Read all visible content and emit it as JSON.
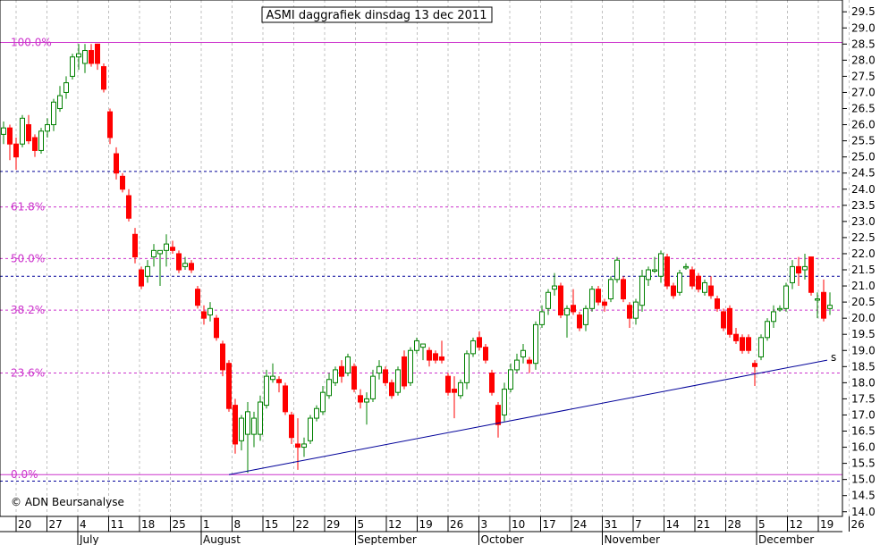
{
  "chart_data": {
    "type": "candlestick",
    "title": "ASMI daggrafiek dinsdag 13 dec 2011",
    "copyright": "© ADN Beursanalyse",
    "trendline_label": "s",
    "ylim": [
      14.0,
      29.5
    ],
    "y_ticks": [
      14.0,
      14.5,
      15.0,
      15.5,
      16.0,
      16.5,
      17.0,
      17.5,
      18.0,
      18.5,
      19.0,
      19.5,
      20.0,
      20.5,
      21.0,
      21.5,
      22.0,
      22.5,
      23.0,
      23.5,
      24.0,
      24.5,
      25.0,
      25.5,
      26.0,
      26.5,
      27.0,
      27.5,
      28.0,
      28.5,
      29.0,
      29.5
    ],
    "x_ticks": [
      "20",
      "27",
      "4",
      "11",
      "18",
      "25",
      "1",
      "8",
      "15",
      "22",
      "29",
      "5",
      "12",
      "19",
      "26",
      "3",
      "10",
      "17",
      "24",
      "31",
      "7",
      "14",
      "21",
      "28",
      "5",
      "12",
      "19",
      "26"
    ],
    "months": [
      {
        "label": "July",
        "week_index": 2
      },
      {
        "label": "August",
        "week_index": 6
      },
      {
        "label": "September",
        "week_index": 11
      },
      {
        "label": "October",
        "week_index": 15
      },
      {
        "label": "November",
        "week_index": 19
      },
      {
        "label": "December",
        "week_index": 24
      }
    ],
    "colors": {
      "up": "#008000",
      "down": "#ff0000",
      "fib": "#cc33cc",
      "support": "#000099",
      "trend": "#000099",
      "grid": "#c0c0c0"
    },
    "fib_levels": [
      {
        "label": "100.0%",
        "value": 28.55
      },
      {
        "label": "61.8%",
        "value": 23.45
      },
      {
        "label": "50.0%",
        "value": 21.85
      },
      {
        "label": "38.2%",
        "value": 20.25
      },
      {
        "label": "23.6%",
        "value": 18.3
      },
      {
        "label": "0.0%",
        "value": 15.15
      }
    ],
    "support_levels": [
      24.55,
      21.3,
      14.95
    ],
    "trendline": [
      {
        "date": "2011-08-08",
        "value": 15.15
      },
      {
        "date": "2011-12-26",
        "value": 18.7
      }
    ],
    "candles": [
      {
        "d": "2011-06-17",
        "o": 25.7,
        "h": 26.1,
        "l": 25.4,
        "c": 25.9
      },
      {
        "d": "2011-06-20",
        "o": 25.9,
        "h": 26.0,
        "l": 24.9,
        "c": 25.4
      },
      {
        "d": "2011-06-21",
        "o": 25.4,
        "h": 25.6,
        "l": 24.6,
        "c": 25.0
      },
      {
        "d": "2011-06-22",
        "o": 25.4,
        "h": 26.3,
        "l": 25.3,
        "c": 26.2
      },
      {
        "d": "2011-06-23",
        "o": 26.0,
        "h": 26.3,
        "l": 25.4,
        "c": 25.5
      },
      {
        "d": "2011-06-24",
        "o": 25.6,
        "h": 25.7,
        "l": 25.0,
        "c": 25.2
      },
      {
        "d": "2011-06-27",
        "o": 25.2,
        "h": 25.9,
        "l": 25.1,
        "c": 25.8
      },
      {
        "d": "2011-06-28",
        "o": 25.8,
        "h": 26.2,
        "l": 25.6,
        "c": 26.0
      },
      {
        "d": "2011-06-29",
        "o": 26.0,
        "h": 26.8,
        "l": 25.8,
        "c": 26.7
      },
      {
        "d": "2011-06-30",
        "o": 26.5,
        "h": 27.2,
        "l": 26.4,
        "c": 26.9
      },
      {
        "d": "2011-07-01",
        "o": 27.0,
        "h": 27.5,
        "l": 26.8,
        "c": 27.3
      },
      {
        "d": "2011-07-04",
        "o": 27.5,
        "h": 28.2,
        "l": 27.4,
        "c": 28.1
      },
      {
        "d": "2011-07-05",
        "o": 28.1,
        "h": 28.5,
        "l": 27.7,
        "c": 28.2
      },
      {
        "d": "2011-07-06",
        "o": 27.9,
        "h": 28.5,
        "l": 27.6,
        "c": 28.3
      },
      {
        "d": "2011-07-07",
        "o": 28.3,
        "h": 28.5,
        "l": 27.8,
        "c": 27.9
      },
      {
        "d": "2011-07-08",
        "o": 28.5,
        "h": 28.5,
        "l": 27.7,
        "c": 27.9
      },
      {
        "d": "2011-07-11",
        "o": 27.8,
        "h": 27.9,
        "l": 27.0,
        "c": 27.1
      },
      {
        "d": "2011-07-12",
        "o": 26.4,
        "h": 26.5,
        "l": 25.4,
        "c": 25.6
      },
      {
        "d": "2011-07-13",
        "o": 25.1,
        "h": 25.3,
        "l": 24.3,
        "c": 24.5
      },
      {
        "d": "2011-07-14",
        "o": 24.4,
        "h": 24.5,
        "l": 23.9,
        "c": 24.0
      },
      {
        "d": "2011-07-15",
        "o": 23.8,
        "h": 24.0,
        "l": 23.0,
        "c": 23.1
      },
      {
        "d": "2011-07-18",
        "o": 22.6,
        "h": 22.8,
        "l": 21.7,
        "c": 21.9
      },
      {
        "d": "2011-07-19",
        "o": 21.5,
        "h": 21.6,
        "l": 20.9,
        "c": 21.0
      },
      {
        "d": "2011-07-20",
        "o": 21.3,
        "h": 21.8,
        "l": 21.1,
        "c": 21.6
      },
      {
        "d": "2011-07-21",
        "o": 21.9,
        "h": 22.3,
        "l": 21.6,
        "c": 22.1
      },
      {
        "d": "2011-07-22",
        "o": 22.0,
        "h": 22.1,
        "l": 21.0,
        "c": 22.1
      },
      {
        "d": "2011-07-25",
        "o": 22.1,
        "h": 22.6,
        "l": 21.6,
        "c": 22.3
      },
      {
        "d": "2011-07-26",
        "o": 22.2,
        "h": 22.4,
        "l": 22.0,
        "c": 22.1
      },
      {
        "d": "2011-07-27",
        "o": 22.0,
        "h": 22.1,
        "l": 21.4,
        "c": 21.5
      },
      {
        "d": "2011-07-28",
        "o": 21.6,
        "h": 21.9,
        "l": 21.5,
        "c": 21.7
      },
      {
        "d": "2011-07-29",
        "o": 21.7,
        "h": 21.8,
        "l": 21.4,
        "c": 21.5
      },
      {
        "d": "2011-08-01",
        "o": 20.9,
        "h": 21.0,
        "l": 20.3,
        "c": 20.4
      },
      {
        "d": "2011-08-02",
        "o": 20.2,
        "h": 20.4,
        "l": 19.8,
        "c": 20.0
      },
      {
        "d": "2011-08-03",
        "o": 20.1,
        "h": 20.5,
        "l": 19.9,
        "c": 20.3
      },
      {
        "d": "2011-08-04",
        "o": 20.0,
        "h": 20.1,
        "l": 19.3,
        "c": 19.4
      },
      {
        "d": "2011-08-05",
        "o": 19.2,
        "h": 19.3,
        "l": 18.2,
        "c": 18.4
      },
      {
        "d": "2011-08-08",
        "o": 18.6,
        "h": 18.7,
        "l": 17.1,
        "c": 17.2
      },
      {
        "d": "2011-08-09",
        "o": 17.3,
        "h": 17.5,
        "l": 15.8,
        "c": 16.1
      },
      {
        "d": "2011-08-10",
        "o": 16.2,
        "h": 17.0,
        "l": 15.9,
        "c": 16.9
      },
      {
        "d": "2011-08-11",
        "o": 16.4,
        "h": 17.4,
        "l": 15.2,
        "c": 17.1
      },
      {
        "d": "2011-08-12",
        "o": 16.4,
        "h": 17.1,
        "l": 16.0,
        "c": 16.9
      },
      {
        "d": "2011-08-15",
        "o": 16.4,
        "h": 17.6,
        "l": 16.2,
        "c": 17.4
      },
      {
        "d": "2011-08-16",
        "o": 17.3,
        "h": 18.4,
        "l": 17.2,
        "c": 18.2
      },
      {
        "d": "2011-08-17",
        "o": 18.1,
        "h": 18.6,
        "l": 18.0,
        "c": 18.2
      },
      {
        "d": "2011-08-18",
        "o": 18.1,
        "h": 18.2,
        "l": 17.7,
        "c": 18.0
      },
      {
        "d": "2011-08-19",
        "o": 17.9,
        "h": 18.0,
        "l": 17.0,
        "c": 17.1
      },
      {
        "d": "2011-08-22",
        "o": 17.0,
        "h": 17.1,
        "l": 16.1,
        "c": 16.3
      },
      {
        "d": "2011-08-23",
        "o": 16.1,
        "h": 16.9,
        "l": 15.3,
        "c": 16.0
      },
      {
        "d": "2011-08-24",
        "o": 16.0,
        "h": 16.3,
        "l": 15.7,
        "c": 16.1
      },
      {
        "d": "2011-08-25",
        "o": 16.2,
        "h": 17.0,
        "l": 16.1,
        "c": 16.9
      },
      {
        "d": "2011-08-26",
        "o": 16.9,
        "h": 17.3,
        "l": 16.8,
        "c": 17.2
      },
      {
        "d": "2011-08-29",
        "o": 17.1,
        "h": 17.9,
        "l": 17.0,
        "c": 17.7
      },
      {
        "d": "2011-08-30",
        "o": 17.6,
        "h": 18.3,
        "l": 17.5,
        "c": 18.1
      },
      {
        "d": "2011-08-31",
        "o": 18.0,
        "h": 18.5,
        "l": 17.9,
        "c": 18.4
      },
      {
        "d": "2011-09-01",
        "o": 18.5,
        "h": 18.7,
        "l": 18.0,
        "c": 18.2
      },
      {
        "d": "2011-09-02",
        "o": 18.3,
        "h": 18.9,
        "l": 18.2,
        "c": 18.8
      },
      {
        "d": "2011-09-05",
        "o": 18.5,
        "h": 18.6,
        "l": 17.7,
        "c": 17.8
      },
      {
        "d": "2011-09-06",
        "o": 17.6,
        "h": 17.8,
        "l": 17.2,
        "c": 17.4
      },
      {
        "d": "2011-09-07",
        "o": 17.4,
        "h": 17.7,
        "l": 16.7,
        "c": 17.5
      },
      {
        "d": "2011-09-08",
        "o": 17.5,
        "h": 18.4,
        "l": 17.4,
        "c": 18.2
      },
      {
        "d": "2011-09-09",
        "o": 18.3,
        "h": 18.7,
        "l": 18.1,
        "c": 18.5
      },
      {
        "d": "2011-09-12",
        "o": 18.4,
        "h": 18.5,
        "l": 17.9,
        "c": 18.0
      },
      {
        "d": "2011-09-13",
        "o": 18.0,
        "h": 18.1,
        "l": 17.5,
        "c": 17.6
      },
      {
        "d": "2011-09-14",
        "o": 17.7,
        "h": 18.5,
        "l": 17.6,
        "c": 18.4
      },
      {
        "d": "2011-09-15",
        "o": 18.8,
        "h": 19.0,
        "l": 17.8,
        "c": 17.9
      },
      {
        "d": "2011-09-16",
        "o": 18.0,
        "h": 19.1,
        "l": 17.9,
        "c": 19.0
      },
      {
        "d": "2011-09-19",
        "o": 19.0,
        "h": 19.4,
        "l": 18.9,
        "c": 19.3
      },
      {
        "d": "2011-09-20",
        "o": 19.1,
        "h": 19.2,
        "l": 18.7,
        "c": 19.2
      },
      {
        "d": "2011-09-21",
        "o": 19.0,
        "h": 19.1,
        "l": 18.5,
        "c": 18.7
      },
      {
        "d": "2011-09-22",
        "o": 18.9,
        "h": 19.0,
        "l": 18.6,
        "c": 18.7
      },
      {
        "d": "2011-09-23",
        "o": 18.8,
        "h": 19.3,
        "l": 18.6,
        "c": 18.7
      },
      {
        "d": "2011-09-26",
        "o": 18.2,
        "h": 18.3,
        "l": 17.6,
        "c": 17.7
      },
      {
        "d": "2011-09-27",
        "o": 17.8,
        "h": 18.2,
        "l": 16.9,
        "c": 17.7
      },
      {
        "d": "2011-09-28",
        "o": 17.6,
        "h": 18.1,
        "l": 17.5,
        "c": 18.0
      },
      {
        "d": "2011-09-29",
        "o": 18.0,
        "h": 19.0,
        "l": 17.8,
        "c": 18.9
      },
      {
        "d": "2011-09-30",
        "o": 18.9,
        "h": 19.4,
        "l": 18.8,
        "c": 19.3
      },
      {
        "d": "2011-10-03",
        "o": 19.4,
        "h": 19.6,
        "l": 19.0,
        "c": 19.1
      },
      {
        "d": "2011-10-04",
        "o": 19.1,
        "h": 19.2,
        "l": 18.6,
        "c": 18.7
      },
      {
        "d": "2011-10-05",
        "o": 18.3,
        "h": 18.4,
        "l": 17.6,
        "c": 17.7
      },
      {
        "d": "2011-10-06",
        "o": 17.3,
        "h": 17.4,
        "l": 16.3,
        "c": 16.7
      },
      {
        "d": "2011-10-07",
        "o": 17.0,
        "h": 18.0,
        "l": 16.8,
        "c": 17.8
      },
      {
        "d": "2011-10-10",
        "o": 17.8,
        "h": 18.6,
        "l": 17.7,
        "c": 18.4
      },
      {
        "d": "2011-10-11",
        "o": 18.4,
        "h": 18.9,
        "l": 18.3,
        "c": 18.7
      },
      {
        "d": "2011-10-12",
        "o": 18.8,
        "h": 19.2,
        "l": 18.6,
        "c": 19.0
      },
      {
        "d": "2011-10-13",
        "o": 18.7,
        "h": 18.8,
        "l": 18.3,
        "c": 18.6
      },
      {
        "d": "2011-10-14",
        "o": 18.6,
        "h": 19.9,
        "l": 18.4,
        "c": 19.8
      },
      {
        "d": "2011-10-17",
        "o": 19.8,
        "h": 20.4,
        "l": 19.7,
        "c": 20.2
      },
      {
        "d": "2011-10-18",
        "o": 20.3,
        "h": 20.9,
        "l": 20.1,
        "c": 20.8
      },
      {
        "d": "2011-10-19",
        "o": 20.9,
        "h": 21.4,
        "l": 20.7,
        "c": 21.0
      },
      {
        "d": "2011-10-20",
        "o": 21.0,
        "h": 21.1,
        "l": 20.0,
        "c": 20.1
      },
      {
        "d": "2011-10-21",
        "o": 20.1,
        "h": 20.4,
        "l": 19.4,
        "c": 20.3
      },
      {
        "d": "2011-10-24",
        "o": 20.4,
        "h": 20.9,
        "l": 20.1,
        "c": 20.2
      },
      {
        "d": "2011-10-25",
        "o": 20.1,
        "h": 20.2,
        "l": 19.6,
        "c": 19.7
      },
      {
        "d": "2011-10-26",
        "o": 19.8,
        "h": 20.4,
        "l": 19.6,
        "c": 20.3
      },
      {
        "d": "2011-10-27",
        "o": 20.3,
        "h": 21.0,
        "l": 20.2,
        "c": 20.9
      },
      {
        "d": "2011-10-28",
        "o": 20.9,
        "h": 21.0,
        "l": 20.4,
        "c": 20.5
      },
      {
        "d": "2011-10-31",
        "o": 20.5,
        "h": 20.6,
        "l": 20.2,
        "c": 20.4
      },
      {
        "d": "2011-11-01",
        "o": 20.6,
        "h": 21.3,
        "l": 20.5,
        "c": 21.2
      },
      {
        "d": "2011-11-02",
        "o": 21.2,
        "h": 21.9,
        "l": 21.1,
        "c": 21.8
      },
      {
        "d": "2011-11-03",
        "o": 21.2,
        "h": 21.3,
        "l": 20.5,
        "c": 20.6
      },
      {
        "d": "2011-11-04",
        "o": 20.4,
        "h": 20.5,
        "l": 19.7,
        "c": 20.0
      },
      {
        "d": "2011-11-07",
        "o": 20.0,
        "h": 20.6,
        "l": 19.8,
        "c": 20.5
      },
      {
        "d": "2011-11-08",
        "o": 20.4,
        "h": 21.5,
        "l": 20.2,
        "c": 21.3
      },
      {
        "d": "2011-11-09",
        "o": 21.2,
        "h": 21.6,
        "l": 21.0,
        "c": 21.5
      },
      {
        "d": "2011-11-10",
        "o": 21.5,
        "h": 21.9,
        "l": 21.4,
        "c": 21.5
      },
      {
        "d": "2011-11-11",
        "o": 21.3,
        "h": 22.1,
        "l": 21.1,
        "c": 22.0
      },
      {
        "d": "2011-11-14",
        "o": 21.9,
        "h": 22.0,
        "l": 20.9,
        "c": 21.0
      },
      {
        "d": "2011-11-15",
        "o": 21.0,
        "h": 21.1,
        "l": 20.6,
        "c": 20.7
      },
      {
        "d": "2011-11-16",
        "o": 20.8,
        "h": 21.5,
        "l": 20.7,
        "c": 21.4
      },
      {
        "d": "2011-11-17",
        "o": 21.6,
        "h": 21.7,
        "l": 21.5,
        "c": 21.6
      },
      {
        "d": "2011-11-18",
        "o": 21.5,
        "h": 21.6,
        "l": 20.9,
        "c": 21.0
      },
      {
        "d": "2011-11-21",
        "o": 21.3,
        "h": 21.4,
        "l": 20.8,
        "c": 20.9
      },
      {
        "d": "2011-11-22",
        "o": 20.8,
        "h": 21.2,
        "l": 20.7,
        "c": 21.1
      },
      {
        "d": "2011-11-23",
        "o": 21.0,
        "h": 21.3,
        "l": 20.6,
        "c": 20.7
      },
      {
        "d": "2011-11-24",
        "o": 20.6,
        "h": 20.7,
        "l": 20.2,
        "c": 20.3
      },
      {
        "d": "2011-11-25",
        "o": 20.2,
        "h": 20.3,
        "l": 19.6,
        "c": 19.7
      },
      {
        "d": "2011-11-28",
        "o": 20.3,
        "h": 20.4,
        "l": 19.4,
        "c": 19.5
      },
      {
        "d": "2011-11-29",
        "o": 19.5,
        "h": 19.7,
        "l": 19.2,
        "c": 19.3
      },
      {
        "d": "2011-11-30",
        "o": 19.4,
        "h": 19.5,
        "l": 18.9,
        "c": 19.0
      },
      {
        "d": "2011-12-01",
        "o": 19.4,
        "h": 19.5,
        "l": 18.9,
        "c": 19.0
      },
      {
        "d": "2011-12-02",
        "o": 18.6,
        "h": 18.7,
        "l": 17.9,
        "c": 18.5
      },
      {
        "d": "2011-12-05",
        "o": 18.8,
        "h": 19.5,
        "l": 18.7,
        "c": 19.4
      },
      {
        "d": "2011-12-06",
        "o": 19.4,
        "h": 20.0,
        "l": 19.3,
        "c": 19.9
      },
      {
        "d": "2011-12-07",
        "o": 19.9,
        "h": 20.4,
        "l": 19.7,
        "c": 20.2
      },
      {
        "d": "2011-12-08",
        "o": 20.3,
        "h": 20.4,
        "l": 20.2,
        "c": 20.3
      },
      {
        "d": "2011-12-09",
        "o": 20.3,
        "h": 21.1,
        "l": 20.2,
        "c": 21.0
      },
      {
        "d": "2011-12-12",
        "o": 21.1,
        "h": 21.8,
        "l": 20.9,
        "c": 21.6
      },
      {
        "d": "2011-12-13",
        "o": 21.6,
        "h": 21.9,
        "l": 21.0,
        "c": 21.4
      },
      {
        "d": "2011-12-14",
        "o": 21.5,
        "h": 22.0,
        "l": 21.2,
        "c": 21.6
      },
      {
        "d": "2011-12-15",
        "o": 21.9,
        "h": 21.9,
        "l": 20.7,
        "c": 20.8
      },
      {
        "d": "2011-12-16",
        "o": 20.6,
        "h": 20.8,
        "l": 20.0,
        "c": 20.6
      },
      {
        "d": "2011-12-19",
        "o": 20.8,
        "h": 21.2,
        "l": 19.9,
        "c": 20.0
      },
      {
        "d": "2011-12-20",
        "o": 20.3,
        "h": 20.8,
        "l": 20.1,
        "c": 20.4
      }
    ]
  }
}
